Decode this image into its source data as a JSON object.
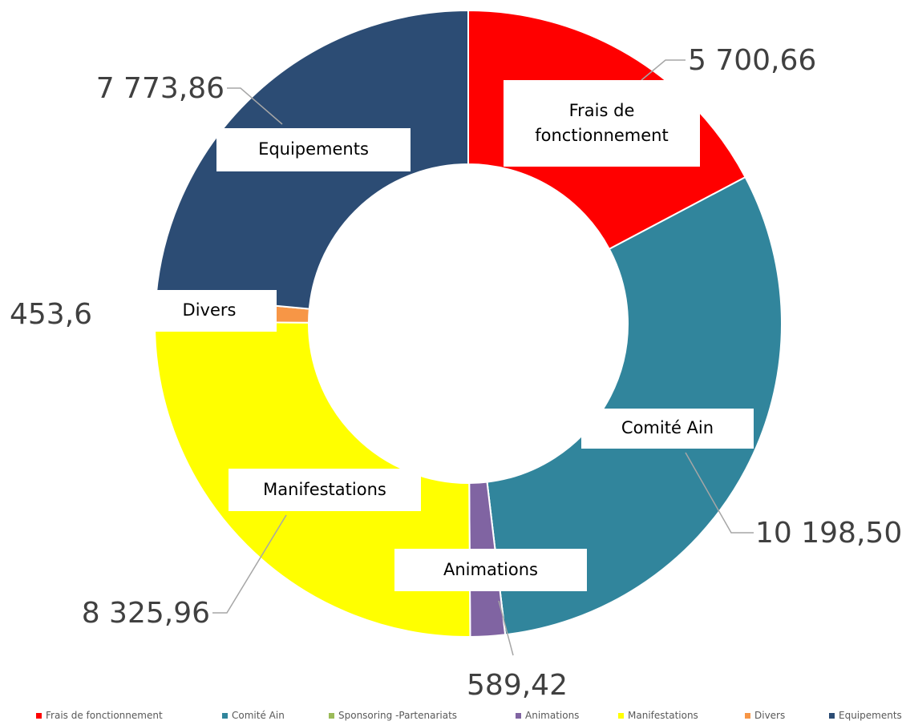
{
  "chart_data": {
    "type": "donut",
    "categories": [
      "Frais de fonctionnement",
      "Comité Ain",
      "Sponsoring -Partenariats",
      "Animations",
      "Manifestations",
      "Divers",
      "Equipements"
    ],
    "values": [
      5700.66,
      10198.5,
      0,
      589.42,
      8325.96,
      453.6,
      7773.86
    ],
    "value_labels": [
      "5 700,66",
      "10 198,50",
      null,
      "589,42",
      "8 325,96",
      "453,6",
      "7 773,86"
    ],
    "colors": [
      "#ff0000",
      "#31859c",
      "#9bbb59",
      "#8064a2",
      "#ffff00",
      "#f79646",
      "#2c4c74"
    ],
    "legend": "bottom"
  }
}
